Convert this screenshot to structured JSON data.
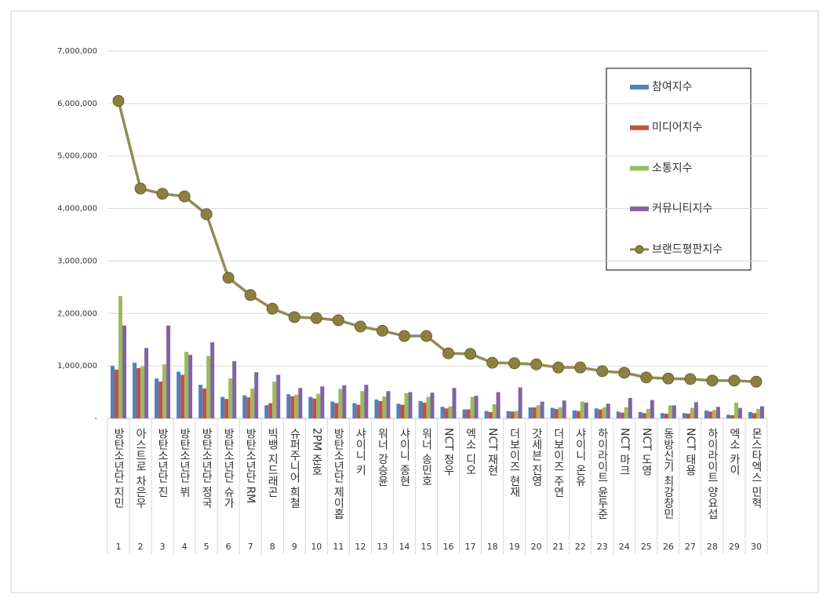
{
  "chart_data": {
    "type": "bar",
    "categories": [
      "방탄소년단 지민",
      "아스트로 차은우",
      "방탄소년단 진",
      "방탄소년단 뷔",
      "방탄소년단 정국",
      "방탄소년단 슈가",
      "방탄소년단 RM",
      "빅뱅 지드래곤",
      "슈퍼주니어 희철",
      "2PM 준호",
      "방탄소년단 제이홉",
      "샤이니 키",
      "워너 강승윤",
      "샤이니 종현",
      "워너 송민호",
      "NCT 정우",
      "엑소 디오",
      "NCT 재현",
      "더보이즈 현재",
      "갓세븐 진영",
      "더보이즈 주연",
      "샤이니 온유",
      "하이라이트 윤두준",
      "NCT 마크",
      "NCT 도영",
      "동방신기 최강창민",
      "NCT 태용",
      "하이라이트 양요섭",
      "엑소 카이",
      "몬스타엑스 민혁"
    ],
    "ranks": [
      1,
      2,
      3,
      4,
      5,
      6,
      7,
      8,
      9,
      10,
      11,
      12,
      13,
      14,
      15,
      16,
      17,
      18,
      19,
      20,
      21,
      22,
      23,
      24,
      25,
      26,
      27,
      28,
      29,
      30
    ],
    "series": [
      {
        "name": "참여지수",
        "color": "#4f81bd",
        "type": "bar",
        "values": [
          1000000,
          1060000,
          760000,
          890000,
          640000,
          410000,
          440000,
          250000,
          460000,
          410000,
          320000,
          290000,
          360000,
          280000,
          330000,
          220000,
          170000,
          140000,
          140000,
          210000,
          200000,
          150000,
          190000,
          130000,
          120000,
          100000,
          100000,
          150000,
          70000,
          120000
        ]
      },
      {
        "name": "미디어지수",
        "color": "#c0504d",
        "type": "bar",
        "values": [
          930000,
          960000,
          700000,
          830000,
          570000,
          370000,
          400000,
          290000,
          420000,
          380000,
          290000,
          260000,
          330000,
          260000,
          300000,
          190000,
          170000,
          120000,
          130000,
          210000,
          180000,
          140000,
          170000,
          110000,
          100000,
          90000,
          90000,
          130000,
          60000,
          100000
        ]
      },
      {
        "name": "소통지수",
        "color": "#9bbb59",
        "type": "bar",
        "values": [
          2330000,
          990000,
          1030000,
          1270000,
          1190000,
          760000,
          570000,
          700000,
          450000,
          470000,
          560000,
          520000,
          420000,
          480000,
          410000,
          230000,
          410000,
          270000,
          140000,
          250000,
          210000,
          320000,
          210000,
          210000,
          180000,
          250000,
          200000,
          160000,
          300000,
          180000
        ]
      },
      {
        "name": "커뮤니티지수",
        "color": "#8064a2",
        "type": "bar",
        "values": [
          1770000,
          1340000,
          1770000,
          1210000,
          1450000,
          1090000,
          880000,
          830000,
          580000,
          610000,
          630000,
          640000,
          520000,
          500000,
          490000,
          580000,
          430000,
          500000,
          590000,
          320000,
          340000,
          300000,
          280000,
          390000,
          350000,
          250000,
          310000,
          220000,
          200000,
          230000
        ]
      },
      {
        "name": "브랜드평판지수",
        "color": "#948a54",
        "type": "line",
        "values": [
          6050000,
          4380000,
          4280000,
          4230000,
          3890000,
          2680000,
          2350000,
          2090000,
          1930000,
          1910000,
          1870000,
          1750000,
          1670000,
          1570000,
          1570000,
          1240000,
          1230000,
          1060000,
          1050000,
          1030000,
          970000,
          970000,
          900000,
          870000,
          780000,
          760000,
          750000,
          720000,
          720000,
          700000
        ]
      }
    ],
    "ylim": [
      0,
      7000000
    ],
    "yticks": [
      {
        "value": 0,
        "label": "-"
      },
      {
        "value": 1000000,
        "label": "1,000,000"
      },
      {
        "value": 2000000,
        "label": "2,000,000"
      },
      {
        "value": 3000000,
        "label": "3,000,000"
      },
      {
        "value": 4000000,
        "label": "4,000,000"
      },
      {
        "value": 5000000,
        "label": "5,000,000"
      },
      {
        "value": 6000000,
        "label": "6,000,000"
      },
      {
        "value": 7000000,
        "label": "7,000,000"
      }
    ],
    "grid": true,
    "legend": "upper-right"
  }
}
